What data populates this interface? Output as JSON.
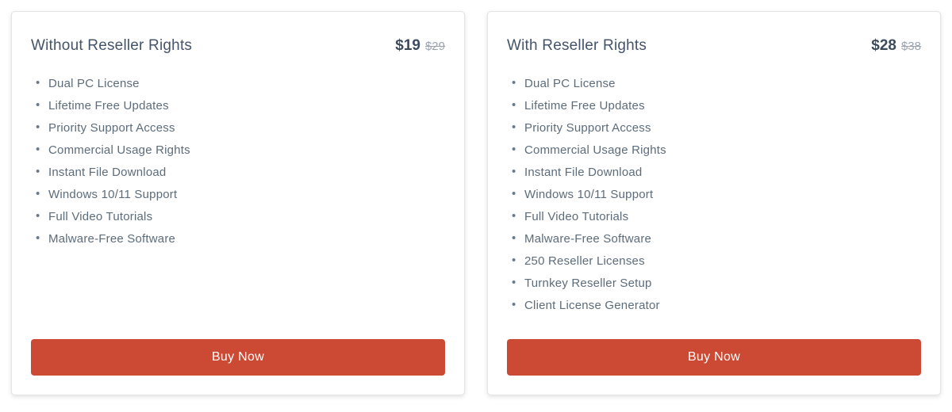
{
  "colors": {
    "accent": "#cc4a33",
    "title_text": "#44546a",
    "price_text": "#3c4a5e",
    "old_price_text": "#9aa4b0",
    "feature_text": "#5d6c7b",
    "button_text": "#ffffff",
    "card_border": "#e4e4e4",
    "page_background": "#ffffff"
  },
  "cards": [
    {
      "title": "Without Reseller Rights",
      "price": "$19",
      "old_price": "$29",
      "features": [
        "Dual PC License",
        "Lifetime Free Updates",
        "Priority Support Access",
        "Commercial Usage Rights",
        "Instant File Download",
        "Windows 10/11 Support",
        "Full Video Tutorials",
        "Malware-Free Software"
      ],
      "button_label": "Buy Now"
    },
    {
      "title": "With Reseller Rights",
      "price": "$28",
      "old_price": "$38",
      "features": [
        "Dual PC License",
        "Lifetime Free Updates",
        "Priority Support Access",
        "Commercial Usage Rights",
        "Instant File Download",
        "Windows 10/11 Support",
        "Full Video Tutorials",
        "Malware-Free Software",
        "250 Reseller Licenses",
        "Turnkey Reseller Setup",
        "Client License Generator"
      ],
      "button_label": "Buy Now"
    }
  ]
}
